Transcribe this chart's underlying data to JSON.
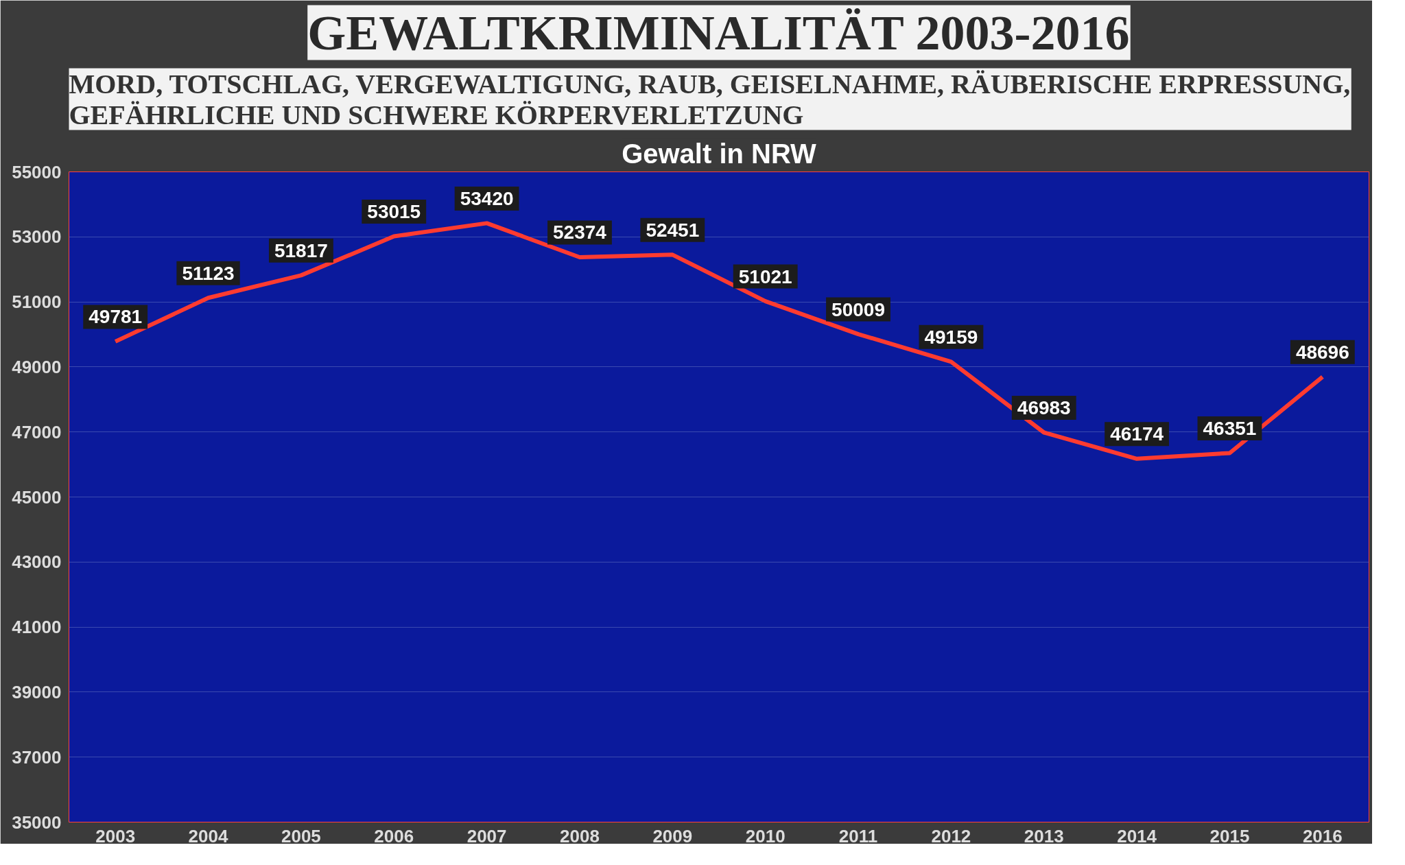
{
  "chart_data": {
    "type": "line",
    "title": "GEWALTKRIMINALITÄT 2003-2016",
    "subtitle": "MORD, TOTSCHLAG, VERGEWALTIGUNG, RAUB, GEISELNAHME, RÄUBERISCHE ERPRESSUNG, GEFÄHRLICHE UND SCHWERE KÖRPERVERLETZUNG",
    "annotations": [
      "Gewalt in NRW"
    ],
    "categories": [
      "2003",
      "2004",
      "2005",
      "2006",
      "2007",
      "2008",
      "2009",
      "2010",
      "2011",
      "2012",
      "2013",
      "2014",
      "2015",
      "2016"
    ],
    "series": [
      {
        "color": "#ff3b30",
        "values": [
          49781,
          51123,
          51817,
          53015,
          53420,
          52374,
          52451,
          51021,
          50009,
          49159,
          46983,
          46174,
          46351,
          48696
        ]
      }
    ],
    "ylim": [
      35000,
      55000
    ],
    "yticks": [
      35000,
      37000,
      39000,
      41000,
      43000,
      45000,
      47000,
      49000,
      51000,
      53000,
      55000
    ],
    "grid": "y",
    "data_labels": true,
    "line_style": "solid"
  }
}
